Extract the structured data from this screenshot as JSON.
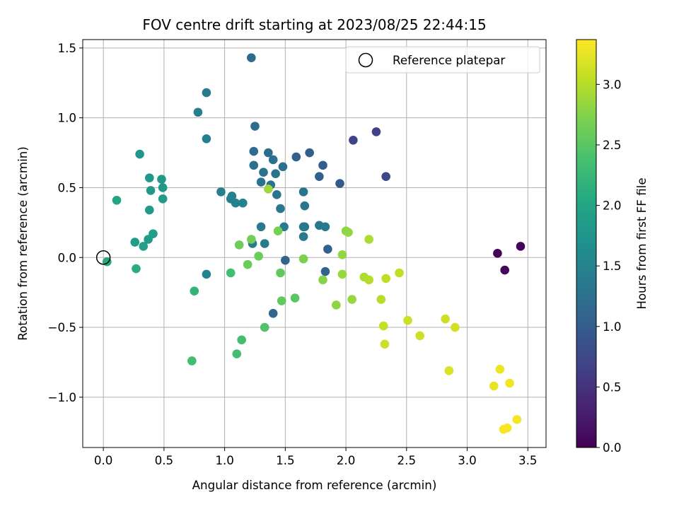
{
  "chart_data": {
    "type": "scatter",
    "title": "FOV centre drift starting at 2023/08/25 22:44:15",
    "xlabel": "Angular distance from reference (arcmin)",
    "ylabel": "Rotation from reference (arcmin)",
    "xlim": [
      -0.17,
      3.65
    ],
    "ylim": [
      -1.36,
      1.56
    ],
    "xticks": [
      0.0,
      0.5,
      1.0,
      1.5,
      2.0,
      2.5,
      3.0,
      3.5
    ],
    "xtick_labels": [
      "0.0",
      "0.5",
      "1.0",
      "1.5",
      "2.0",
      "2.5",
      "3.0",
      "3.5"
    ],
    "yticks": [
      -1.0,
      -0.5,
      0.0,
      0.5,
      1.0,
      1.5
    ],
    "ytick_labels": [
      "−1.0",
      "−0.5",
      "0.0",
      "0.5",
      "1.0",
      "1.5"
    ],
    "grid": true,
    "legend": {
      "placement": "upper right",
      "entries": [
        {
          "label": "Reference platepar",
          "marker": "open-circle"
        }
      ]
    },
    "reference_point": {
      "x": 0.0,
      "y": 0.0
    },
    "colorbar": {
      "label": "Hours from first FF file",
      "colormap": "viridis",
      "range": [
        0.0,
        3.37
      ],
      "ticks": [
        0.0,
        0.5,
        1.0,
        1.5,
        2.0,
        2.5,
        3.0
      ],
      "tick_labels": [
        "0.0",
        "0.5",
        "1.0",
        "1.5",
        "2.0",
        "2.5",
        "3.0"
      ]
    },
    "points": [
      {
        "x": 3.25,
        "y": 0.03,
        "c": 0.02
      },
      {
        "x": 3.44,
        "y": 0.08,
        "c": 0.04
      },
      {
        "x": 3.31,
        "y": -0.09,
        "c": 0.06
      },
      {
        "x": 2.25,
        "y": 0.9,
        "c": 0.65
      },
      {
        "x": 2.06,
        "y": 0.84,
        "c": 0.7
      },
      {
        "x": 2.33,
        "y": 0.58,
        "c": 0.72
      },
      {
        "x": 1.95,
        "y": 0.53,
        "c": 0.95
      },
      {
        "x": 1.81,
        "y": 0.66,
        "c": 1.0
      },
      {
        "x": 1.7,
        "y": 0.75,
        "c": 1.02
      },
      {
        "x": 1.59,
        "y": 0.72,
        "c": 1.05
      },
      {
        "x": 1.78,
        "y": 0.58,
        "c": 1.04
      },
      {
        "x": 1.85,
        "y": 0.06,
        "c": 1.05
      },
      {
        "x": 1.83,
        "y": -0.1,
        "c": 1.08
      },
      {
        "x": 1.5,
        "y": -0.02,
        "c": 1.1
      },
      {
        "x": 1.4,
        "y": -0.4,
        "c": 1.12
      },
      {
        "x": 1.22,
        "y": 1.43,
        "c": 1.18
      },
      {
        "x": 1.25,
        "y": 0.94,
        "c": 1.2
      },
      {
        "x": 1.24,
        "y": 0.76,
        "c": 1.21
      },
      {
        "x": 1.36,
        "y": 0.75,
        "c": 1.22
      },
      {
        "x": 1.4,
        "y": 0.7,
        "c": 1.23
      },
      {
        "x": 1.24,
        "y": 0.66,
        "c": 1.24
      },
      {
        "x": 1.48,
        "y": 0.65,
        "c": 1.25
      },
      {
        "x": 1.32,
        "y": 0.61,
        "c": 1.26
      },
      {
        "x": 1.42,
        "y": 0.6,
        "c": 1.27
      },
      {
        "x": 1.3,
        "y": 0.54,
        "c": 1.28
      },
      {
        "x": 1.38,
        "y": 0.52,
        "c": 1.29
      },
      {
        "x": 1.43,
        "y": 0.45,
        "c": 1.3
      },
      {
        "x": 1.65,
        "y": 0.47,
        "c": 1.31
      },
      {
        "x": 1.66,
        "y": 0.37,
        "c": 1.32
      },
      {
        "x": 1.46,
        "y": 0.35,
        "c": 1.33
      },
      {
        "x": 1.65,
        "y": 0.22,
        "c": 1.34
      },
      {
        "x": 1.66,
        "y": 0.22,
        "c": 1.34
      },
      {
        "x": 1.78,
        "y": 0.23,
        "c": 1.35
      },
      {
        "x": 1.83,
        "y": 0.22,
        "c": 1.36
      },
      {
        "x": 1.65,
        "y": 0.15,
        "c": 1.37
      },
      {
        "x": 1.49,
        "y": 0.22,
        "c": 1.38
      },
      {
        "x": 1.3,
        "y": 0.22,
        "c": 1.39
      },
      {
        "x": 1.33,
        "y": 0.1,
        "c": 1.4
      },
      {
        "x": 1.23,
        "y": 0.1,
        "c": 1.41
      },
      {
        "x": 0.85,
        "y": 1.18,
        "c": 1.42
      },
      {
        "x": 0.78,
        "y": 1.04,
        "c": 1.43
      },
      {
        "x": 0.85,
        "y": 0.85,
        "c": 1.44
      },
      {
        "x": 0.97,
        "y": 0.47,
        "c": 1.45
      },
      {
        "x": 1.06,
        "y": 0.44,
        "c": 1.46
      },
      {
        "x": 1.05,
        "y": 0.42,
        "c": 1.47
      },
      {
        "x": 1.09,
        "y": 0.39,
        "c": 1.48
      },
      {
        "x": 1.15,
        "y": 0.39,
        "c": 1.49
      },
      {
        "x": 0.85,
        "y": -0.12,
        "c": 1.5
      },
      {
        "x": 0.3,
        "y": 0.74,
        "c": 1.78
      },
      {
        "x": 0.38,
        "y": 0.57,
        "c": 1.8
      },
      {
        "x": 0.48,
        "y": 0.56,
        "c": 1.8
      },
      {
        "x": 0.39,
        "y": 0.48,
        "c": 1.82
      },
      {
        "x": 0.49,
        "y": 0.5,
        "c": 1.82
      },
      {
        "x": 0.49,
        "y": 0.42,
        "c": 1.84
      },
      {
        "x": 0.38,
        "y": 0.34,
        "c": 1.85
      },
      {
        "x": 0.41,
        "y": 0.17,
        "c": 1.87
      },
      {
        "x": 0.37,
        "y": 0.13,
        "c": 1.88
      },
      {
        "x": 0.26,
        "y": 0.11,
        "c": 1.89
      },
      {
        "x": 0.33,
        "y": 0.08,
        "c": 1.9
      },
      {
        "x": 0.11,
        "y": 0.41,
        "c": 2.0
      },
      {
        "x": 0.03,
        "y": -0.03,
        "c": 2.05
      },
      {
        "x": 0.27,
        "y": -0.08,
        "c": 2.1
      },
      {
        "x": 0.75,
        "y": -0.24,
        "c": 2.2
      },
      {
        "x": 1.05,
        "y": -0.11,
        "c": 2.35
      },
      {
        "x": 1.14,
        "y": -0.59,
        "c": 2.35
      },
      {
        "x": 1.1,
        "y": -0.69,
        "c": 2.35
      },
      {
        "x": 0.73,
        "y": -0.74,
        "c": 2.35
      },
      {
        "x": 1.33,
        "y": -0.5,
        "c": 2.45
      },
      {
        "x": 1.58,
        "y": -0.29,
        "c": 2.5
      },
      {
        "x": 1.47,
        "y": -0.31,
        "c": 2.55
      },
      {
        "x": 1.46,
        "y": -0.11,
        "c": 2.55
      },
      {
        "x": 1.19,
        "y": -0.05,
        "c": 2.6
      },
      {
        "x": 1.28,
        "y": 0.01,
        "c": 2.6
      },
      {
        "x": 1.12,
        "y": 0.09,
        "c": 2.62
      },
      {
        "x": 1.22,
        "y": 0.13,
        "c": 2.65
      },
      {
        "x": 1.44,
        "y": 0.19,
        "c": 2.68
      },
      {
        "x": 1.65,
        "y": -0.01,
        "c": 2.7
      },
      {
        "x": 1.81,
        "y": -0.16,
        "c": 2.75
      },
      {
        "x": 1.92,
        "y": -0.34,
        "c": 2.8
      },
      {
        "x": 2.0,
        "y": 0.19,
        "c": 2.8
      },
      {
        "x": 2.02,
        "y": 0.18,
        "c": 2.82
      },
      {
        "x": 1.97,
        "y": 0.02,
        "c": 2.82
      },
      {
        "x": 1.97,
        "y": -0.12,
        "c": 2.85
      },
      {
        "x": 2.05,
        "y": -0.3,
        "c": 2.85
      },
      {
        "x": 1.36,
        "y": 0.49,
        "c": 2.88
      },
      {
        "x": 2.19,
        "y": 0.13,
        "c": 2.95
      },
      {
        "x": 2.15,
        "y": -0.14,
        "c": 2.95
      },
      {
        "x": 2.19,
        "y": -0.16,
        "c": 3.0
      },
      {
        "x": 2.29,
        "y": -0.3,
        "c": 3.0
      },
      {
        "x": 2.33,
        "y": -0.15,
        "c": 3.05
      },
      {
        "x": 2.44,
        "y": -0.11,
        "c": 3.05
      },
      {
        "x": 2.31,
        "y": -0.49,
        "c": 3.08
      },
      {
        "x": 2.32,
        "y": -0.62,
        "c": 3.1
      },
      {
        "x": 2.51,
        "y": -0.45,
        "c": 3.1
      },
      {
        "x": 2.61,
        "y": -0.56,
        "c": 3.12
      },
      {
        "x": 2.82,
        "y": -0.44,
        "c": 3.12
      },
      {
        "x": 2.9,
        "y": -0.5,
        "c": 3.15
      },
      {
        "x": 2.85,
        "y": -0.81,
        "c": 3.18
      },
      {
        "x": 3.22,
        "y": -0.92,
        "c": 3.25
      },
      {
        "x": 3.27,
        "y": -0.8,
        "c": 3.28
      },
      {
        "x": 3.35,
        "y": -0.9,
        "c": 3.3
      },
      {
        "x": 3.41,
        "y": -1.16,
        "c": 3.32
      },
      {
        "x": 3.3,
        "y": -1.23,
        "c": 3.34
      },
      {
        "x": 3.33,
        "y": -1.22,
        "c": 3.35
      }
    ]
  }
}
